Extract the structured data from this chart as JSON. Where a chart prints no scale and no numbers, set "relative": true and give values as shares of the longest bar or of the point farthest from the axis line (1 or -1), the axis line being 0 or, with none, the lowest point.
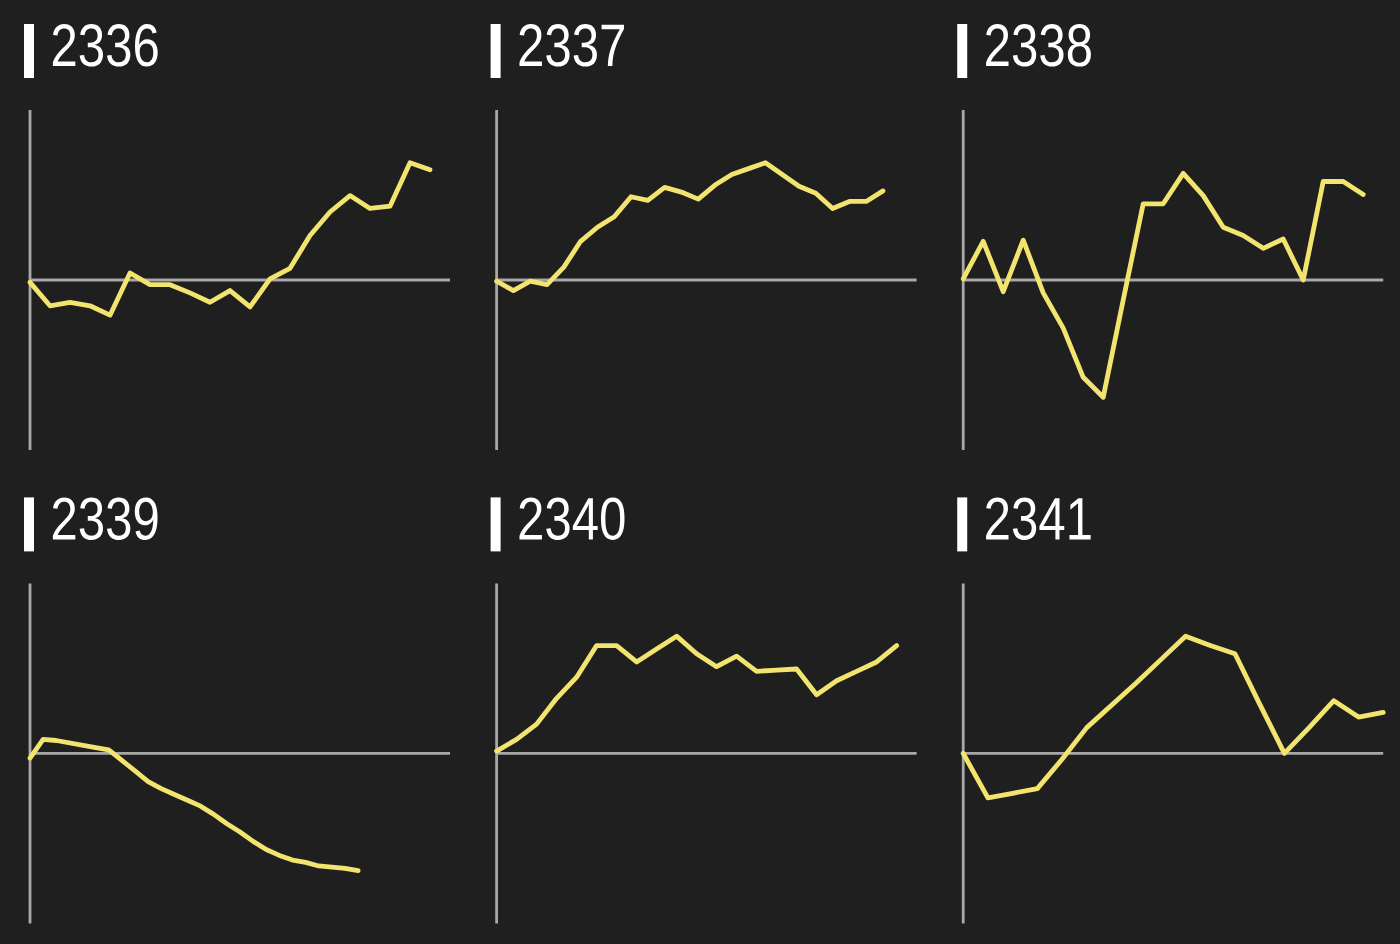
{
  "chart_data": [
    {
      "type": "line",
      "title": "2336",
      "relative": true,
      "color": "#f2e46e",
      "categories": [
        null,
        null,
        null,
        null,
        null,
        null,
        null,
        null,
        null,
        null,
        null,
        null,
        null,
        null,
        null,
        null,
        null,
        null,
        null,
        null,
        null,
        null
      ],
      "values": [
        -0.02,
        -0.22,
        -0.19,
        -0.22,
        -0.3,
        0.06,
        -0.04,
        -0.04,
        -0.11,
        -0.19,
        -0.09,
        -0.23,
        0.01,
        0.1,
        0.38,
        0.58,
        0.72,
        0.61,
        0.63,
        1.0,
        0.94,
        null
      ]
    },
    {
      "type": "line",
      "title": "2337",
      "relative": true,
      "color": "#f2e46e",
      "categories": [
        null,
        null,
        null,
        null,
        null,
        null,
        null,
        null,
        null,
        null,
        null,
        null,
        null,
        null,
        null,
        null,
        null,
        null,
        null,
        null,
        null,
        null,
        null,
        null,
        null,
        null
      ],
      "values": [
        -0.01,
        -0.09,
        -0.01,
        -0.04,
        0.11,
        0.33,
        0.45,
        0.54,
        0.71,
        0.68,
        0.79,
        0.75,
        0.69,
        0.81,
        0.9,
        0.95,
        1.0,
        0.9,
        0.8,
        0.74,
        0.61,
        0.67,
        0.67,
        0.76,
        null,
        null
      ]
    },
    {
      "type": "line",
      "title": "2338",
      "relative": true,
      "color": "#f2e46e",
      "categories": [
        null,
        null,
        null,
        null,
        null,
        null,
        null,
        null,
        null,
        null,
        null,
        null,
        null,
        null,
        null,
        null,
        null,
        null,
        null,
        null,
        null,
        null
      ],
      "values": [
        0.01,
        0.33,
        -0.1,
        0.34,
        -0.11,
        -0.41,
        -0.83,
        -1.0,
        -0.17,
        0.65,
        0.65,
        0.91,
        0.72,
        0.45,
        0.38,
        0.27,
        0.35,
        0.0,
        0.84,
        0.84,
        0.73,
        null
      ]
    },
    {
      "type": "line",
      "title": "2339",
      "relative": true,
      "color": "#f2e46e",
      "categories": [
        null,
        null,
        null,
        null,
        null,
        null,
        null,
        null,
        null,
        null,
        null,
        null,
        null,
        null,
        null,
        null,
        null,
        null,
        null,
        null,
        null,
        null,
        null,
        null,
        null,
        null,
        null,
        null,
        null,
        null,
        null,
        null,
        null
      ],
      "values": [
        -0.04,
        0.12,
        0.11,
        0.09,
        0.07,
        0.05,
        0.03,
        -0.06,
        -0.15,
        -0.24,
        -0.3,
        -0.35,
        -0.4,
        -0.45,
        -0.52,
        -0.6,
        -0.67,
        -0.75,
        -0.82,
        -0.87,
        -0.91,
        -0.93,
        -0.96,
        -0.97,
        -0.98,
        -1.0,
        null,
        null,
        null,
        null,
        null,
        null,
        null
      ]
    },
    {
      "type": "line",
      "title": "2340",
      "relative": true,
      "color": "#f2e46e",
      "categories": [
        null,
        null,
        null,
        null,
        null,
        null,
        null,
        null,
        null,
        null,
        null,
        null,
        null,
        null,
        null,
        null,
        null,
        null,
        null,
        null,
        null,
        null
      ],
      "values": [
        0.02,
        0.12,
        0.25,
        0.47,
        0.65,
        0.92,
        0.92,
        0.78,
        0.89,
        1.0,
        0.85,
        0.74,
        0.83,
        0.7,
        0.71,
        0.72,
        0.5,
        0.62,
        0.7,
        0.78,
        0.92,
        null
      ]
    },
    {
      "type": "line",
      "title": "2341",
      "relative": true,
      "color": "#f2e46e",
      "categories": [
        null,
        null,
        null,
        null,
        null,
        null,
        null,
        null,
        null,
        null,
        null,
        null,
        null,
        null,
        null,
        null,
        null,
        null
      ],
      "values": [
        0.0,
        -0.38,
        -0.34,
        -0.3,
        -0.05,
        0.22,
        0.41,
        0.6,
        0.8,
        1.0,
        0.92,
        0.85,
        0.42,
        0.0,
        0.22,
        0.45,
        0.31,
        0.35
      ]
    }
  ]
}
